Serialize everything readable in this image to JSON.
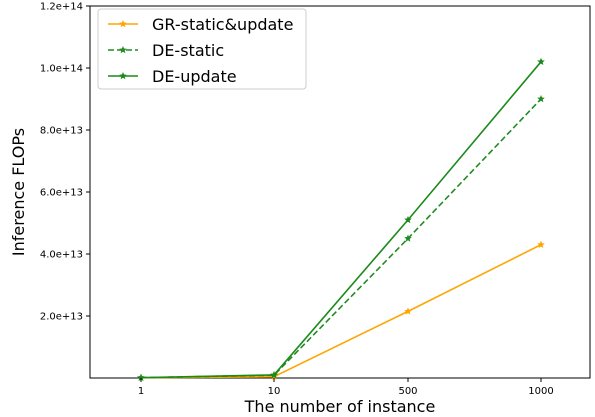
{
  "chart_data": {
    "type": "line",
    "title": "",
    "xlabel": "The number of instance",
    "ylabel": "Inference FLOPs",
    "categories": [
      "1",
      "10",
      "500",
      "1000"
    ],
    "ylim": [
      0,
      120000000000000.0
    ],
    "yticks": [
      {
        "value": 20000000000000.0,
        "label": "2.0e+13"
      },
      {
        "value": 40000000000000.0,
        "label": "4.0e+13"
      },
      {
        "value": 60000000000000.0,
        "label": "6.0e+13"
      },
      {
        "value": 80000000000000.0,
        "label": "8.0e+13"
      },
      {
        "value": 100000000000000.0,
        "label": "1.0e+14"
      },
      {
        "value": 120000000000000.0,
        "label": "1.2e+14"
      }
    ],
    "grid": false,
    "legend_position": "top-left",
    "series": [
      {
        "name": "GR-static&update",
        "color": "#FFA500",
        "line_style": "solid",
        "marker": "star",
        "values": [
          100000000000.0,
          400000000000.0,
          21500000000000.0,
          43000000000000.0
        ]
      },
      {
        "name": "DE-static",
        "color": "#228B22",
        "line_style": "dashed",
        "marker": "star",
        "values": [
          100000000000.0,
          900000000000.0,
          45000000000000.0,
          90000000000000.0
        ]
      },
      {
        "name": "DE-update",
        "color": "#1A8A1A",
        "line_style": "solid",
        "marker": "star",
        "values": [
          100000000000.0,
          1000000000000.0,
          51000000000000.0,
          102000000000000.0
        ]
      }
    ]
  }
}
